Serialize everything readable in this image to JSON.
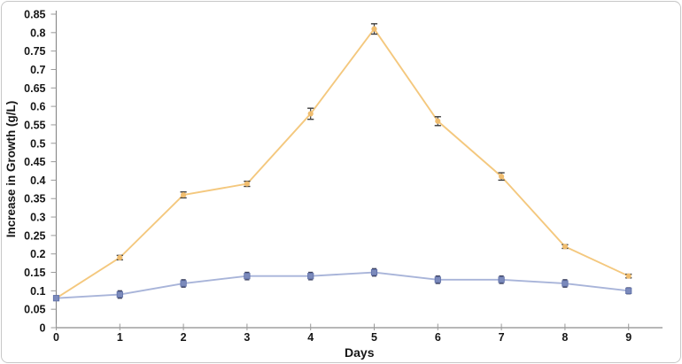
{
  "figure": {
    "background_color": "#ffffff",
    "border_color": "#c7c7c7"
  },
  "chart_data": {
    "type": "line",
    "title": "",
    "xlabel": "Days",
    "ylabel": "Increase in Growth  (g/L)",
    "x": [
      0,
      1,
      2,
      3,
      4,
      5,
      6,
      7,
      8,
      9
    ],
    "xtick_labels": [
      "0",
      "1",
      "2",
      "3",
      "4",
      "5",
      "6",
      "7",
      "8",
      "9"
    ],
    "ylim": [
      0,
      0.85
    ],
    "ytick_step": 0.05,
    "ytick_values": [
      0,
      0.05,
      0.1,
      0.15,
      0.2,
      0.25,
      0.3,
      0.35,
      0.4,
      0.45,
      0.5,
      0.55,
      0.6,
      0.65,
      0.7,
      0.75,
      0.8,
      0.85
    ],
    "ytick_labels": [
      "0",
      "0.05",
      "0.1",
      "0.15",
      "0.2",
      "0.25",
      "0.3",
      "0.35",
      "0.4",
      "0.45",
      "0.5",
      "0.55",
      "0.6",
      "0.65",
      "0.7",
      "0.75",
      "0.8",
      "0.85"
    ],
    "grid": false,
    "legend": "none",
    "axis_color": "#8c8c8c",
    "tick_color": "#9a9a9a",
    "text_color": "#161616",
    "series": [
      {
        "name": "orange-series",
        "line_color": "#f4c87e",
        "marker": "circle",
        "marker_color": "#f0bd6f",
        "values": [
          0.08,
          0.19,
          0.36,
          0.39,
          0.58,
          0.81,
          0.56,
          0.41,
          0.22,
          0.14
        ],
        "errors": [
          0,
          0.006,
          0.008,
          0.007,
          0.015,
          0.014,
          0.012,
          0.01,
          0.005,
          0.005
        ],
        "error_color": "#3d3d3d"
      },
      {
        "name": "blue-series",
        "line_color": "#a8b4d9",
        "marker": "square",
        "marker_color": "#7b8abc",
        "marker_edge_color": "#5e6ea6",
        "values": [
          0.08,
          0.09,
          0.12,
          0.14,
          0.14,
          0.15,
          0.13,
          0.13,
          0.12,
          0.1
        ],
        "errors": [
          0,
          0.01,
          0.01,
          0.01,
          0.01,
          0.01,
          0.01,
          0.01,
          0.01,
          0.008
        ],
        "error_color": "#3f4461"
      }
    ]
  }
}
